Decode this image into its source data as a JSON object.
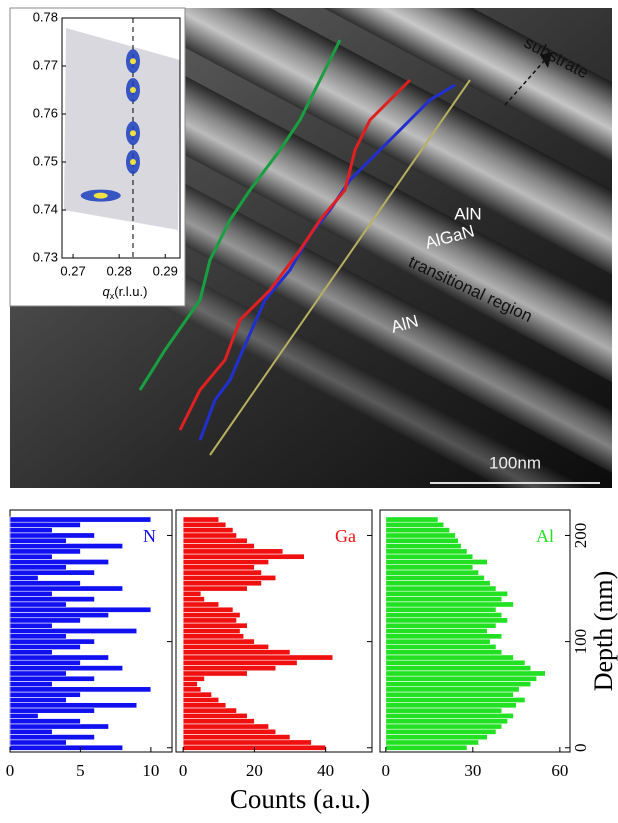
{
  "chart_data": [
    {
      "type": "scatter",
      "x_label": "q",
      "x_label_subscript": "x",
      "x_label_unit": "(r.l.u.)",
      "x": [
        0.283,
        0.283,
        0.283,
        0.283,
        0.276
      ],
      "y": [
        0.771,
        0.765,
        0.756,
        0.75,
        0.743
      ],
      "color": "#1b3fbf",
      "vline": 0.283,
      "xlim": [
        0.2676,
        0.2932
      ],
      "xticks": [
        0.27,
        0.28,
        0.29
      ],
      "ylim": [
        0.73,
        0.78
      ],
      "yticks": [
        0.73,
        0.74,
        0.75,
        0.76,
        0.77,
        0.78
      ]
    },
    {
      "type": "bar",
      "label": "N",
      "color": "#1010f0",
      "xlim": [
        0,
        11.5
      ],
      "xticks": [
        0,
        5,
        10
      ],
      "depth": [
        0,
        5,
        10,
        15,
        20,
        25,
        30,
        35,
        40,
        45,
        50,
        55,
        60,
        65,
        70,
        75,
        80,
        85,
        90,
        95,
        100,
        105,
        110,
        115,
        120,
        125,
        130,
        135,
        140,
        145,
        150,
        155,
        160,
        165,
        170,
        175,
        180,
        185,
        190,
        195,
        200,
        205,
        210,
        215
      ],
      "values": [
        8,
        4,
        6,
        3,
        7,
        5,
        2,
        6,
        9,
        4,
        5,
        10,
        3,
        6,
        4,
        8,
        5,
        7,
        3,
        5,
        6,
        4,
        9,
        3,
        5,
        7,
        10,
        4,
        6,
        3,
        8,
        5,
        2,
        6,
        4,
        7,
        3,
        5,
        8,
        4,
        6,
        3,
        5,
        10
      ],
      "ylim": [
        -4,
        224
      ],
      "yticks": [
        0,
        100,
        200
      ]
    },
    {
      "type": "bar",
      "label": "Ga",
      "color": "#f01010",
      "xlim": [
        -2,
        53
      ],
      "xticks": [
        0,
        20,
        40
      ],
      "depth": [
        0,
        5,
        10,
        15,
        20,
        25,
        30,
        35,
        40,
        45,
        50,
        55,
        60,
        65,
        70,
        75,
        80,
        85,
        90,
        95,
        100,
        105,
        110,
        115,
        120,
        125,
        130,
        135,
        140,
        145,
        150,
        155,
        160,
        165,
        170,
        175,
        180,
        185,
        190,
        195,
        200,
        205,
        210,
        215
      ],
      "values": [
        40,
        36,
        30,
        26,
        24,
        20,
        18,
        15,
        12,
        10,
        8,
        5,
        4,
        6,
        18,
        26,
        32,
        42,
        30,
        24,
        20,
        17,
        16,
        18,
        15,
        16,
        14,
        10,
        6,
        5,
        18,
        22,
        26,
        22,
        20,
        24,
        34,
        28,
        20,
        18,
        15,
        14,
        12,
        10
      ],
      "ylim": [
        -4,
        224
      ],
      "yticks": [
        0,
        100,
        200
      ]
    },
    {
      "type": "bar",
      "label": "Al",
      "color": "#22e022",
      "xlim": [
        -2,
        63.5
      ],
      "xticks": [
        0,
        30,
        60
      ],
      "depth": [
        0,
        5,
        10,
        15,
        20,
        25,
        30,
        35,
        40,
        45,
        50,
        55,
        60,
        65,
        70,
        75,
        80,
        85,
        90,
        95,
        100,
        105,
        110,
        115,
        120,
        125,
        130,
        135,
        140,
        145,
        150,
        155,
        160,
        165,
        170,
        175,
        180,
        185,
        190,
        195,
        200,
        205,
        210,
        215
      ],
      "values": [
        28,
        32,
        35,
        38,
        40,
        42,
        44,
        40,
        45,
        48,
        44,
        46,
        50,
        52,
        55,
        50,
        48,
        44,
        40,
        38,
        36,
        40,
        35,
        38,
        42,
        40,
        38,
        44,
        40,
        42,
        38,
        36,
        34,
        32,
        30,
        35,
        30,
        28,
        26,
        25,
        24,
        22,
        20,
        18
      ],
      "ylim": [
        -4,
        224
      ],
      "yticks": [
        0,
        100,
        200
      ],
      "y_label": "Depth (nm)"
    }
  ],
  "x_label": "Counts (a.u.)",
  "image": {
    "annotations": [
      "substrate",
      "AlN",
      "AlGaN",
      "transitional region",
      "AlN"
    ],
    "scale_bar": "100nm"
  }
}
